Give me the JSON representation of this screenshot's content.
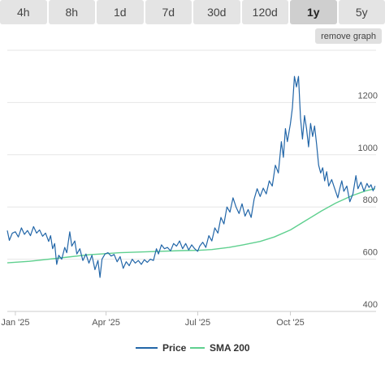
{
  "tabs": [
    {
      "label": "4h",
      "active": false
    },
    {
      "label": "8h",
      "active": false
    },
    {
      "label": "1d",
      "active": false
    },
    {
      "label": "7d",
      "active": false
    },
    {
      "label": "30d",
      "active": false
    },
    {
      "label": "120d",
      "active": false
    },
    {
      "label": "1y",
      "active": true
    },
    {
      "label": "5y",
      "active": false
    }
  ],
  "remove_graph_label": "remove graph",
  "colors": {
    "price": "#2266a8",
    "sma": "#5fd08f",
    "grid": "#e6e6e6",
    "axis": "#cccccc"
  },
  "chart_data": {
    "type": "line",
    "x_axis": {
      "range": [
        "2024-12-24",
        "2025-12-25"
      ],
      "tick_labels": [
        {
          "label": "Jan '25",
          "date": "2025-01-01"
        },
        {
          "label": "Apr '25",
          "date": "2025-04-01"
        },
        {
          "label": "Jul '25",
          "date": "2025-07-01"
        },
        {
          "label": "Oct '25",
          "date": "2025-10-01"
        }
      ]
    },
    "y_axis": {
      "range": [
        400,
        1400
      ],
      "ticks": [
        400,
        600,
        800,
        1000,
        1200
      ]
    },
    "grid": true,
    "legend_position": "bottom-center",
    "series": [
      {
        "name": "Price",
        "color": "#2266a8",
        "points": [
          [
            "2024-12-24",
            710
          ],
          [
            "2024-12-26",
            672
          ],
          [
            "2024-12-29",
            700
          ],
          [
            "2025-01-01",
            705
          ],
          [
            "2025-01-04",
            685
          ],
          [
            "2025-01-07",
            720
          ],
          [
            "2025-01-10",
            695
          ],
          [
            "2025-01-13",
            710
          ],
          [
            "2025-01-16",
            690
          ],
          [
            "2025-01-19",
            725
          ],
          [
            "2025-01-22",
            700
          ],
          [
            "2025-01-25",
            712
          ],
          [
            "2025-01-28",
            688
          ],
          [
            "2025-01-31",
            700
          ],
          [
            "2025-02-03",
            668
          ],
          [
            "2025-02-05",
            690
          ],
          [
            "2025-02-07",
            640
          ],
          [
            "2025-02-09",
            660
          ],
          [
            "2025-02-11",
            580
          ],
          [
            "2025-02-13",
            615
          ],
          [
            "2025-02-16",
            600
          ],
          [
            "2025-02-19",
            645
          ],
          [
            "2025-02-21",
            625
          ],
          [
            "2025-02-24",
            705
          ],
          [
            "2025-02-26",
            650
          ],
          [
            "2025-03-01",
            670
          ],
          [
            "2025-03-03",
            620
          ],
          [
            "2025-03-06",
            640
          ],
          [
            "2025-03-09",
            595
          ],
          [
            "2025-03-12",
            620
          ],
          [
            "2025-03-15",
            585
          ],
          [
            "2025-03-18",
            615
          ],
          [
            "2025-03-21",
            560
          ],
          [
            "2025-03-24",
            595
          ],
          [
            "2025-03-26",
            530
          ],
          [
            "2025-03-28",
            600
          ],
          [
            "2025-03-31",
            620
          ],
          [
            "2025-04-03",
            625
          ],
          [
            "2025-04-06",
            612
          ],
          [
            "2025-04-09",
            618
          ],
          [
            "2025-04-12",
            590
          ],
          [
            "2025-04-15",
            610
          ],
          [
            "2025-04-18",
            565
          ],
          [
            "2025-04-21",
            590
          ],
          [
            "2025-04-24",
            575
          ],
          [
            "2025-04-27",
            600
          ],
          [
            "2025-04-30",
            585
          ],
          [
            "2025-05-03",
            595
          ],
          [
            "2025-05-06",
            580
          ],
          [
            "2025-05-09",
            598
          ],
          [
            "2025-05-12",
            588
          ],
          [
            "2025-05-15",
            600
          ],
          [
            "2025-05-18",
            595
          ],
          [
            "2025-05-21",
            640
          ],
          [
            "2025-05-23",
            620
          ],
          [
            "2025-05-26",
            655
          ],
          [
            "2025-05-29",
            640
          ],
          [
            "2025-06-01",
            645
          ],
          [
            "2025-06-04",
            632
          ],
          [
            "2025-06-07",
            660
          ],
          [
            "2025-06-10",
            650
          ],
          [
            "2025-06-13",
            670
          ],
          [
            "2025-06-16",
            640
          ],
          [
            "2025-06-19",
            660
          ],
          [
            "2025-06-22",
            635
          ],
          [
            "2025-06-25",
            655
          ],
          [
            "2025-06-28",
            640
          ],
          [
            "2025-07-01",
            630
          ],
          [
            "2025-07-03",
            650
          ],
          [
            "2025-07-06",
            665
          ],
          [
            "2025-07-09",
            645
          ],
          [
            "2025-07-12",
            690
          ],
          [
            "2025-07-15",
            670
          ],
          [
            "2025-07-18",
            720
          ],
          [
            "2025-07-21",
            700
          ],
          [
            "2025-07-24",
            760
          ],
          [
            "2025-07-27",
            735
          ],
          [
            "2025-07-30",
            800
          ],
          [
            "2025-08-02",
            780
          ],
          [
            "2025-08-05",
            835
          ],
          [
            "2025-08-08",
            800
          ],
          [
            "2025-08-11",
            775
          ],
          [
            "2025-08-14",
            812
          ],
          [
            "2025-08-17",
            765
          ],
          [
            "2025-08-20",
            790
          ],
          [
            "2025-08-23",
            760
          ],
          [
            "2025-08-26",
            830
          ],
          [
            "2025-08-29",
            870
          ],
          [
            "2025-09-01",
            840
          ],
          [
            "2025-09-04",
            872
          ],
          [
            "2025-09-07",
            850
          ],
          [
            "2025-09-10",
            900
          ],
          [
            "2025-09-13",
            880
          ],
          [
            "2025-09-16",
            960
          ],
          [
            "2025-09-19",
            930
          ],
          [
            "2025-09-22",
            1050
          ],
          [
            "2025-09-24",
            990
          ],
          [
            "2025-09-26",
            1100
          ],
          [
            "2025-09-28",
            1050
          ],
          [
            "2025-10-01",
            1120
          ],
          [
            "2025-10-03",
            1180
          ],
          [
            "2025-10-05",
            1300
          ],
          [
            "2025-10-07",
            1260
          ],
          [
            "2025-10-09",
            1300
          ],
          [
            "2025-10-11",
            1140
          ],
          [
            "2025-10-13",
            1060
          ],
          [
            "2025-10-15",
            1150
          ],
          [
            "2025-10-17",
            1100
          ],
          [
            "2025-10-19",
            1030
          ],
          [
            "2025-10-21",
            1120
          ],
          [
            "2025-10-23",
            1070
          ],
          [
            "2025-10-25",
            1110
          ],
          [
            "2025-10-27",
            1040
          ],
          [
            "2025-10-29",
            960
          ],
          [
            "2025-10-31",
            930
          ],
          [
            "2025-11-02",
            950
          ],
          [
            "2025-11-04",
            900
          ],
          [
            "2025-11-06",
            935
          ],
          [
            "2025-11-08",
            880
          ],
          [
            "2025-11-11",
            905
          ],
          [
            "2025-11-14",
            870
          ],
          [
            "2025-11-17",
            835
          ],
          [
            "2025-11-19",
            870
          ],
          [
            "2025-11-21",
            900
          ],
          [
            "2025-11-23",
            860
          ],
          [
            "2025-11-26",
            880
          ],
          [
            "2025-11-29",
            820
          ],
          [
            "2025-12-02",
            850
          ],
          [
            "2025-12-05",
            920
          ],
          [
            "2025-12-07",
            870
          ],
          [
            "2025-12-10",
            895
          ],
          [
            "2025-12-13",
            860
          ],
          [
            "2025-12-16",
            890
          ],
          [
            "2025-12-18",
            875
          ],
          [
            "2025-12-20",
            885
          ],
          [
            "2025-12-22",
            862
          ],
          [
            "2025-12-24",
            880
          ]
        ]
      },
      {
        "name": "SMA 200",
        "color": "#5fd08f",
        "points": [
          [
            "2024-12-24",
            586
          ],
          [
            "2025-01-15",
            592
          ],
          [
            "2025-02-15",
            605
          ],
          [
            "2025-03-15",
            617
          ],
          [
            "2025-04-15",
            625
          ],
          [
            "2025-05-15",
            629
          ],
          [
            "2025-06-15",
            633
          ],
          [
            "2025-07-01",
            634
          ],
          [
            "2025-07-15",
            637
          ],
          [
            "2025-08-01",
            645
          ],
          [
            "2025-08-15",
            655
          ],
          [
            "2025-09-01",
            668
          ],
          [
            "2025-09-15",
            685
          ],
          [
            "2025-10-01",
            712
          ],
          [
            "2025-10-15",
            745
          ],
          [
            "2025-11-01",
            785
          ],
          [
            "2025-11-15",
            815
          ],
          [
            "2025-12-01",
            843
          ],
          [
            "2025-12-15",
            862
          ],
          [
            "2025-12-24",
            870
          ]
        ]
      }
    ]
  }
}
